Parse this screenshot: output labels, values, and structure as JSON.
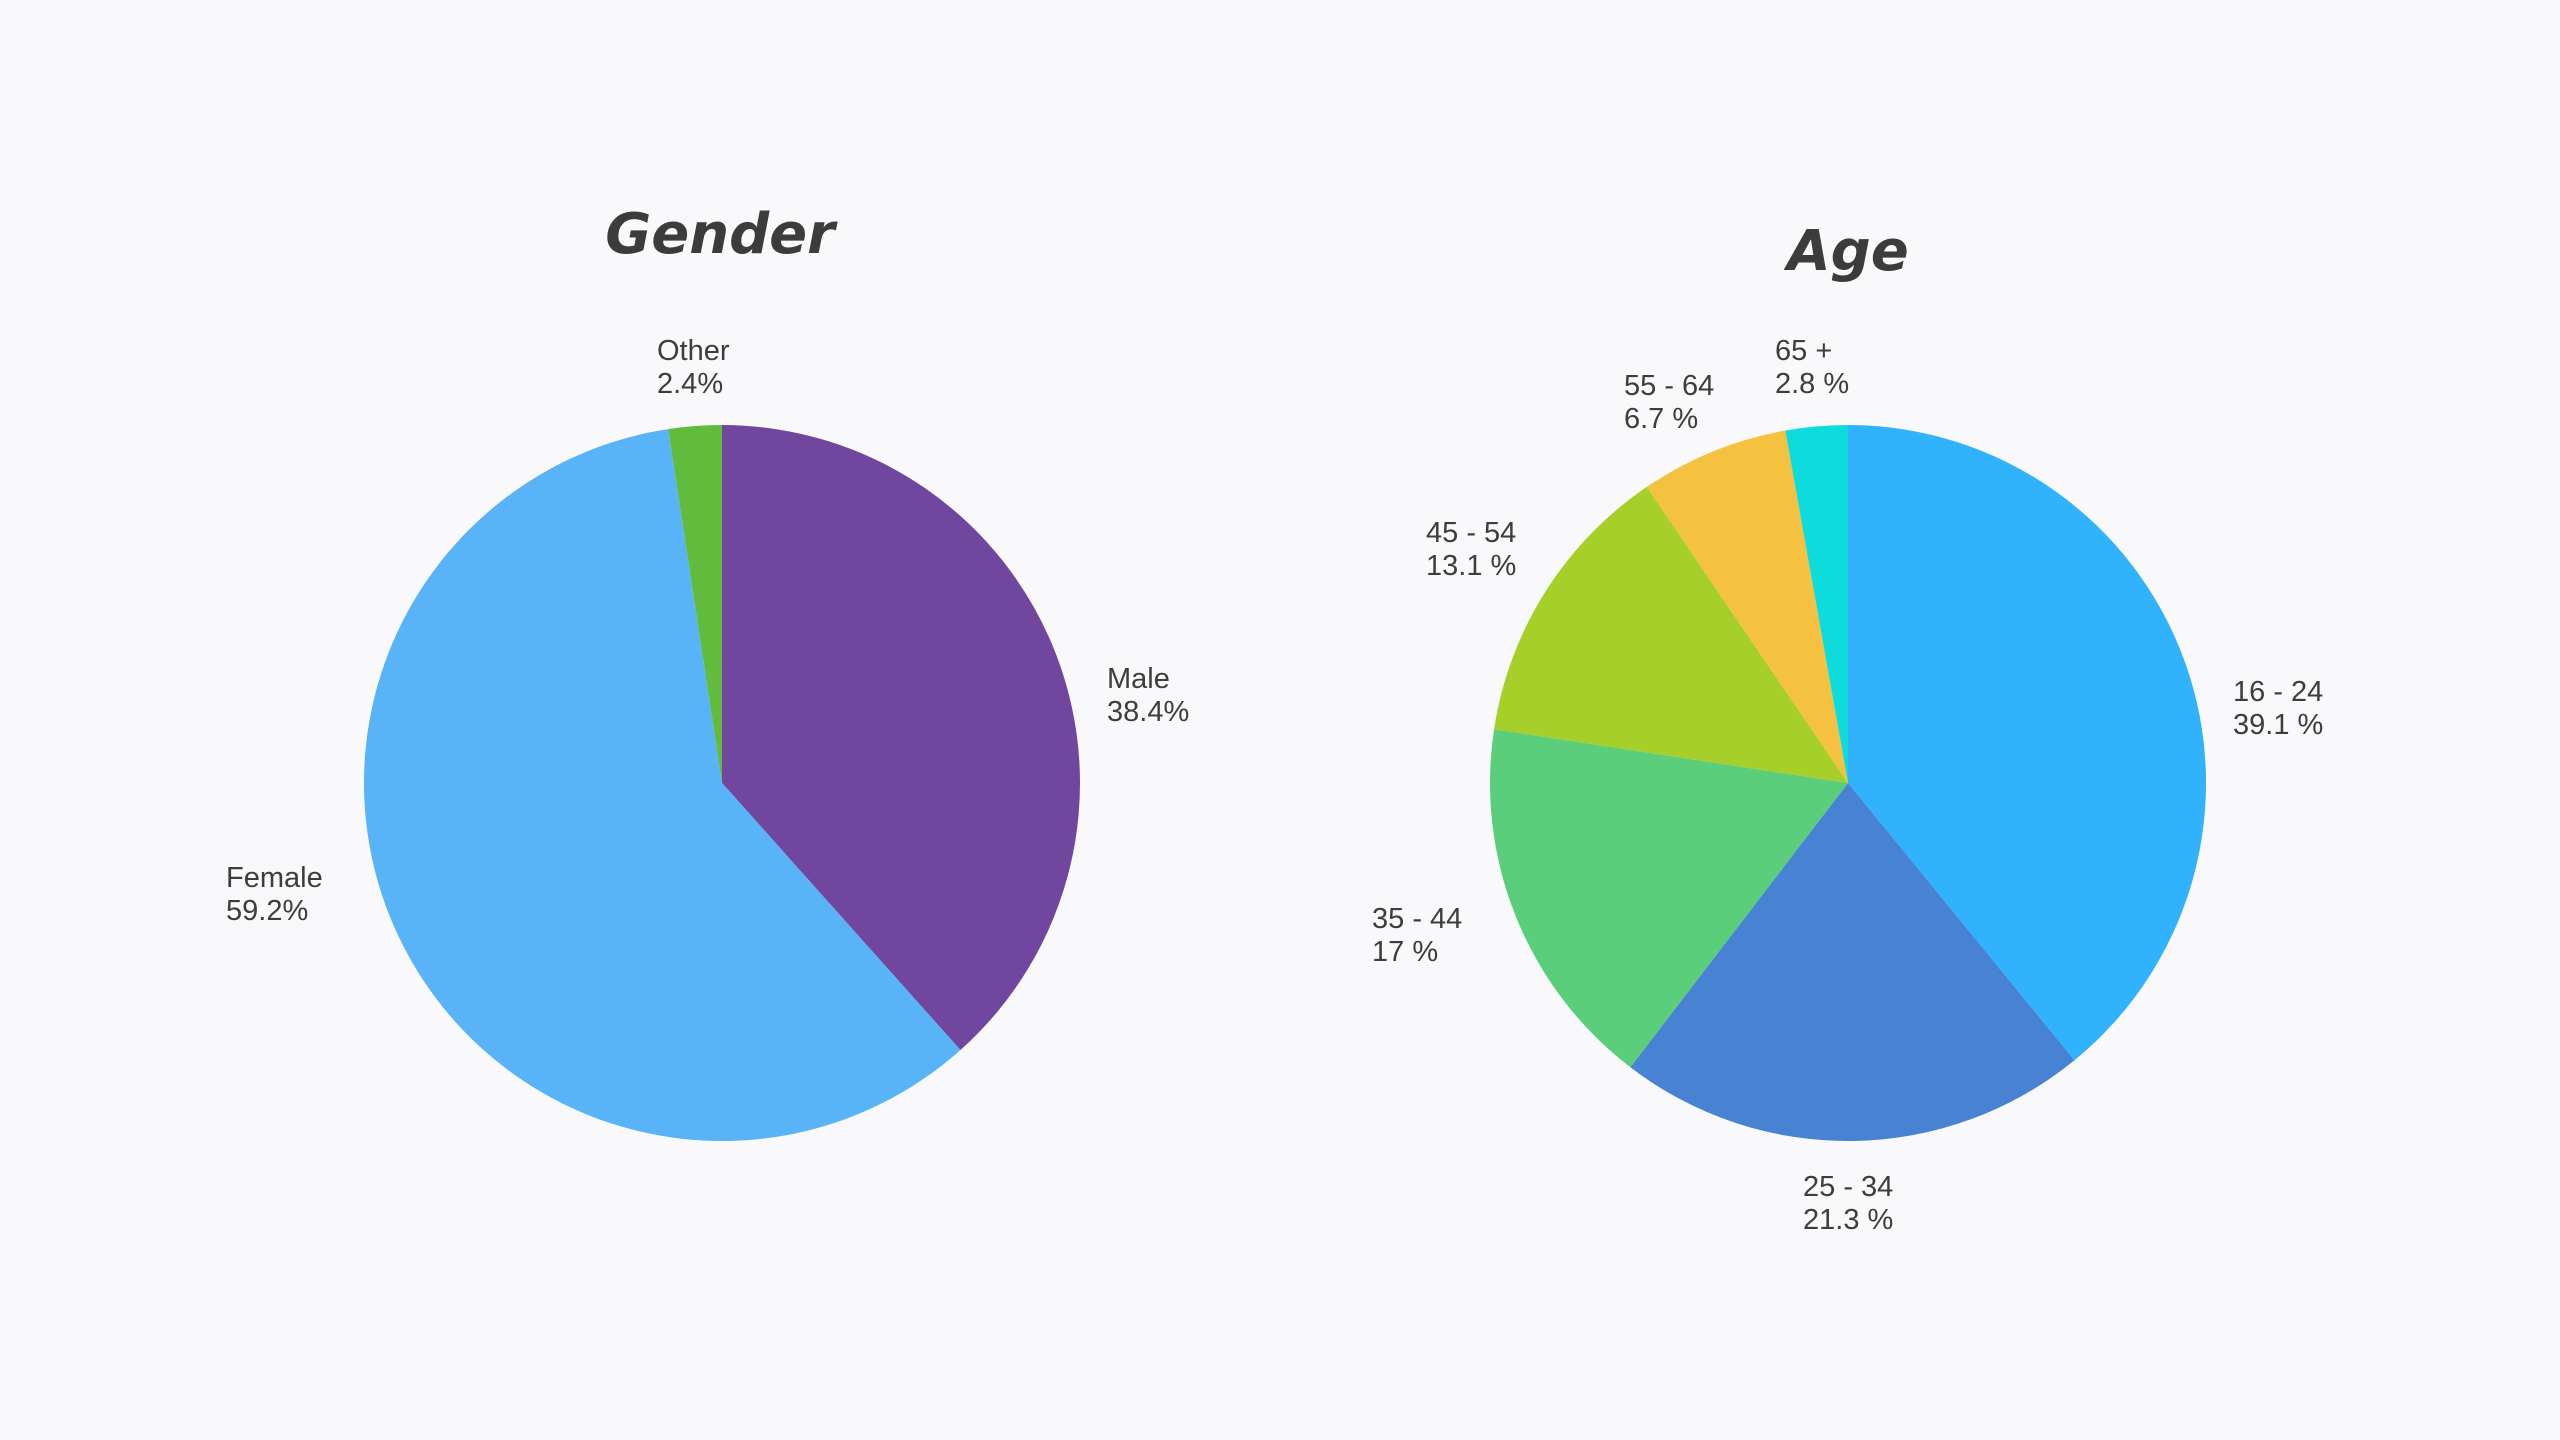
{
  "chart_data": [
    {
      "type": "pie",
      "title": "Gender",
      "slices": [
        {
          "label": "Male",
          "value": 38.4,
          "display": "38.4%",
          "color": "#71469e"
        },
        {
          "label": "Female",
          "value": 59.2,
          "display": "59.2%",
          "color": "#59b3f7"
        },
        {
          "label": "Other",
          "value": 2.4,
          "display": "2.4%",
          "color": "#63bb3d"
        }
      ]
    },
    {
      "type": "pie",
      "title": "Age",
      "slices": [
        {
          "label": "16 - 24",
          "value": 39.1,
          "display": "39.1 %",
          "color": "#30b3fc"
        },
        {
          "label": "25 - 34",
          "value": 21.3,
          "display": "21.3 %",
          "color": "#4782d3"
        },
        {
          "label": "35 - 44",
          "value": 17,
          "display": "17 %",
          "color": "#5ace7b"
        },
        {
          "label": "45 - 54",
          "value": 13.1,
          "display": "13.1 %",
          "color": "#a7cf2a"
        },
        {
          "label": "55 - 64",
          "value": 6.7,
          "display": "6.7 %",
          "color": "#f5c140"
        },
        {
          "label": "65 +",
          "value": 2.8,
          "display": "2.8 %",
          "color": "#0edcdc"
        }
      ]
    }
  ]
}
